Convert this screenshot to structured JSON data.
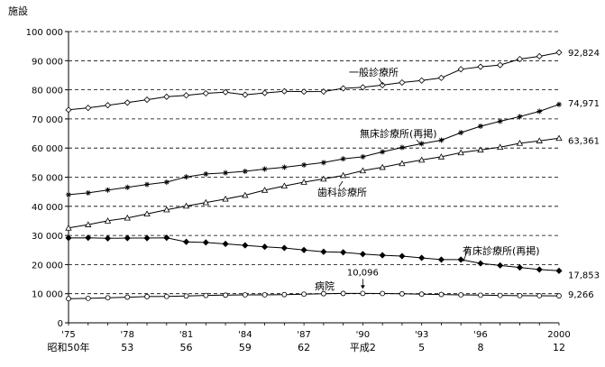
{
  "chart_data": {
    "type": "line",
    "ylabel": "施設",
    "ylim": [
      0,
      100000
    ],
    "yticks": [
      0,
      10000,
      20000,
      30000,
      40000,
      50000,
      60000,
      70000,
      80000,
      90000,
      100000
    ],
    "ytick_labels": [
      "0",
      "10 000",
      "20 000",
      "30 000",
      "40 000",
      "50 000",
      "60 000",
      "70 000",
      "80 000",
      "90 000",
      "100 000"
    ],
    "grid": "horizontal-dashed",
    "x": [
      1975,
      1976,
      1977,
      1978,
      1979,
      1980,
      1981,
      1982,
      1983,
      1984,
      1985,
      1986,
      1987,
      1988,
      1989,
      1990,
      1991,
      1992,
      1993,
      1994,
      1995,
      1996,
      1997,
      1998,
      1999,
      2000
    ],
    "xlim": [
      1975,
      2000
    ],
    "xticks_western": [
      {
        "x": 1975,
        "label": "'75"
      },
      {
        "x": 1978,
        "label": "'78"
      },
      {
        "x": 1981,
        "label": "'81"
      },
      {
        "x": 1984,
        "label": "'84"
      },
      {
        "x": 1987,
        "label": "'87"
      },
      {
        "x": 1990,
        "label": "'90"
      },
      {
        "x": 1993,
        "label": "'93"
      },
      {
        "x": 1996,
        "label": "'96"
      },
      {
        "x": 2000,
        "label": "2000"
      }
    ],
    "xticks_japanese": [
      {
        "x": 1975,
        "label": "昭和50年"
      },
      {
        "x": 1978,
        "label": "53"
      },
      {
        "x": 1981,
        "label": "56"
      },
      {
        "x": 1984,
        "label": "59"
      },
      {
        "x": 1987,
        "label": "62"
      },
      {
        "x": 1990,
        "label": "平成2"
      },
      {
        "x": 1993,
        "label": "5"
      },
      {
        "x": 1996,
        "label": "8"
      },
      {
        "x": 2000,
        "label": "12"
      }
    ],
    "series": [
      {
        "name": "一般診療所",
        "marker": "diamond-open",
        "values": [
          73114,
          73800,
          74700,
          75600,
          76600,
          77611,
          78100,
          78800,
          79200,
          78300,
          78927,
          79500,
          79369,
          79400,
          80500,
          80852,
          81600,
          82500,
          83200,
          84100,
          87069,
          87909,
          88500,
          90556,
          91500,
          92824
        ],
        "end_label": "92,824"
      },
      {
        "name": "無床診療所(再掲)",
        "marker": "star",
        "values": [
          43979,
          44600,
          45600,
          46500,
          47500,
          48300,
          50100,
          51100,
          51500,
          52000,
          52800,
          53400,
          54200,
          55000,
          56300,
          57000,
          58700,
          60200,
          61500,
          62700,
          65300,
          67500,
          69200,
          70800,
          72600,
          74971
        ],
        "end_label": "74,971"
      },
      {
        "name": "歯科診療所",
        "marker": "triangle-open",
        "values": [
          32565,
          33700,
          35000,
          36000,
          37400,
          38834,
          40100,
          41300,
          42500,
          43800,
          45540,
          47000,
          48300,
          49400,
          50600,
          52216,
          53400,
          54700,
          55900,
          57000,
          58407,
          59357,
          60300,
          61651,
          62484,
          63361
        ],
        "end_label": "63,361"
      },
      {
        "name": "有床診療所(再掲)",
        "marker": "diamond-filled",
        "values": [
          29135,
          29200,
          29000,
          29100,
          29100,
          29200,
          27800,
          27600,
          27100,
          26600,
          26100,
          25700,
          25000,
          24400,
          24200,
          23600,
          23200,
          22900,
          22300,
          21700,
          21700,
          20400,
          19700,
          19000,
          18300,
          17853
        ],
        "end_label": "17,853"
      },
      {
        "name": "病院",
        "marker": "circle-open",
        "values": [
          8294,
          8400,
          8600,
          8800,
          9000,
          9055,
          9200,
          9400,
          9500,
          9600,
          9608,
          9700,
          9841,
          10000,
          10081,
          10096,
          10066,
          9963,
          9844,
          9731,
          9606,
          9490,
          9413,
          9333,
          9286,
          9266
        ],
        "end_label": "9,266"
      }
    ],
    "annotations": [
      {
        "text": "10,096",
        "x": 1990,
        "y": 10096,
        "arrow": "down"
      }
    ]
  }
}
